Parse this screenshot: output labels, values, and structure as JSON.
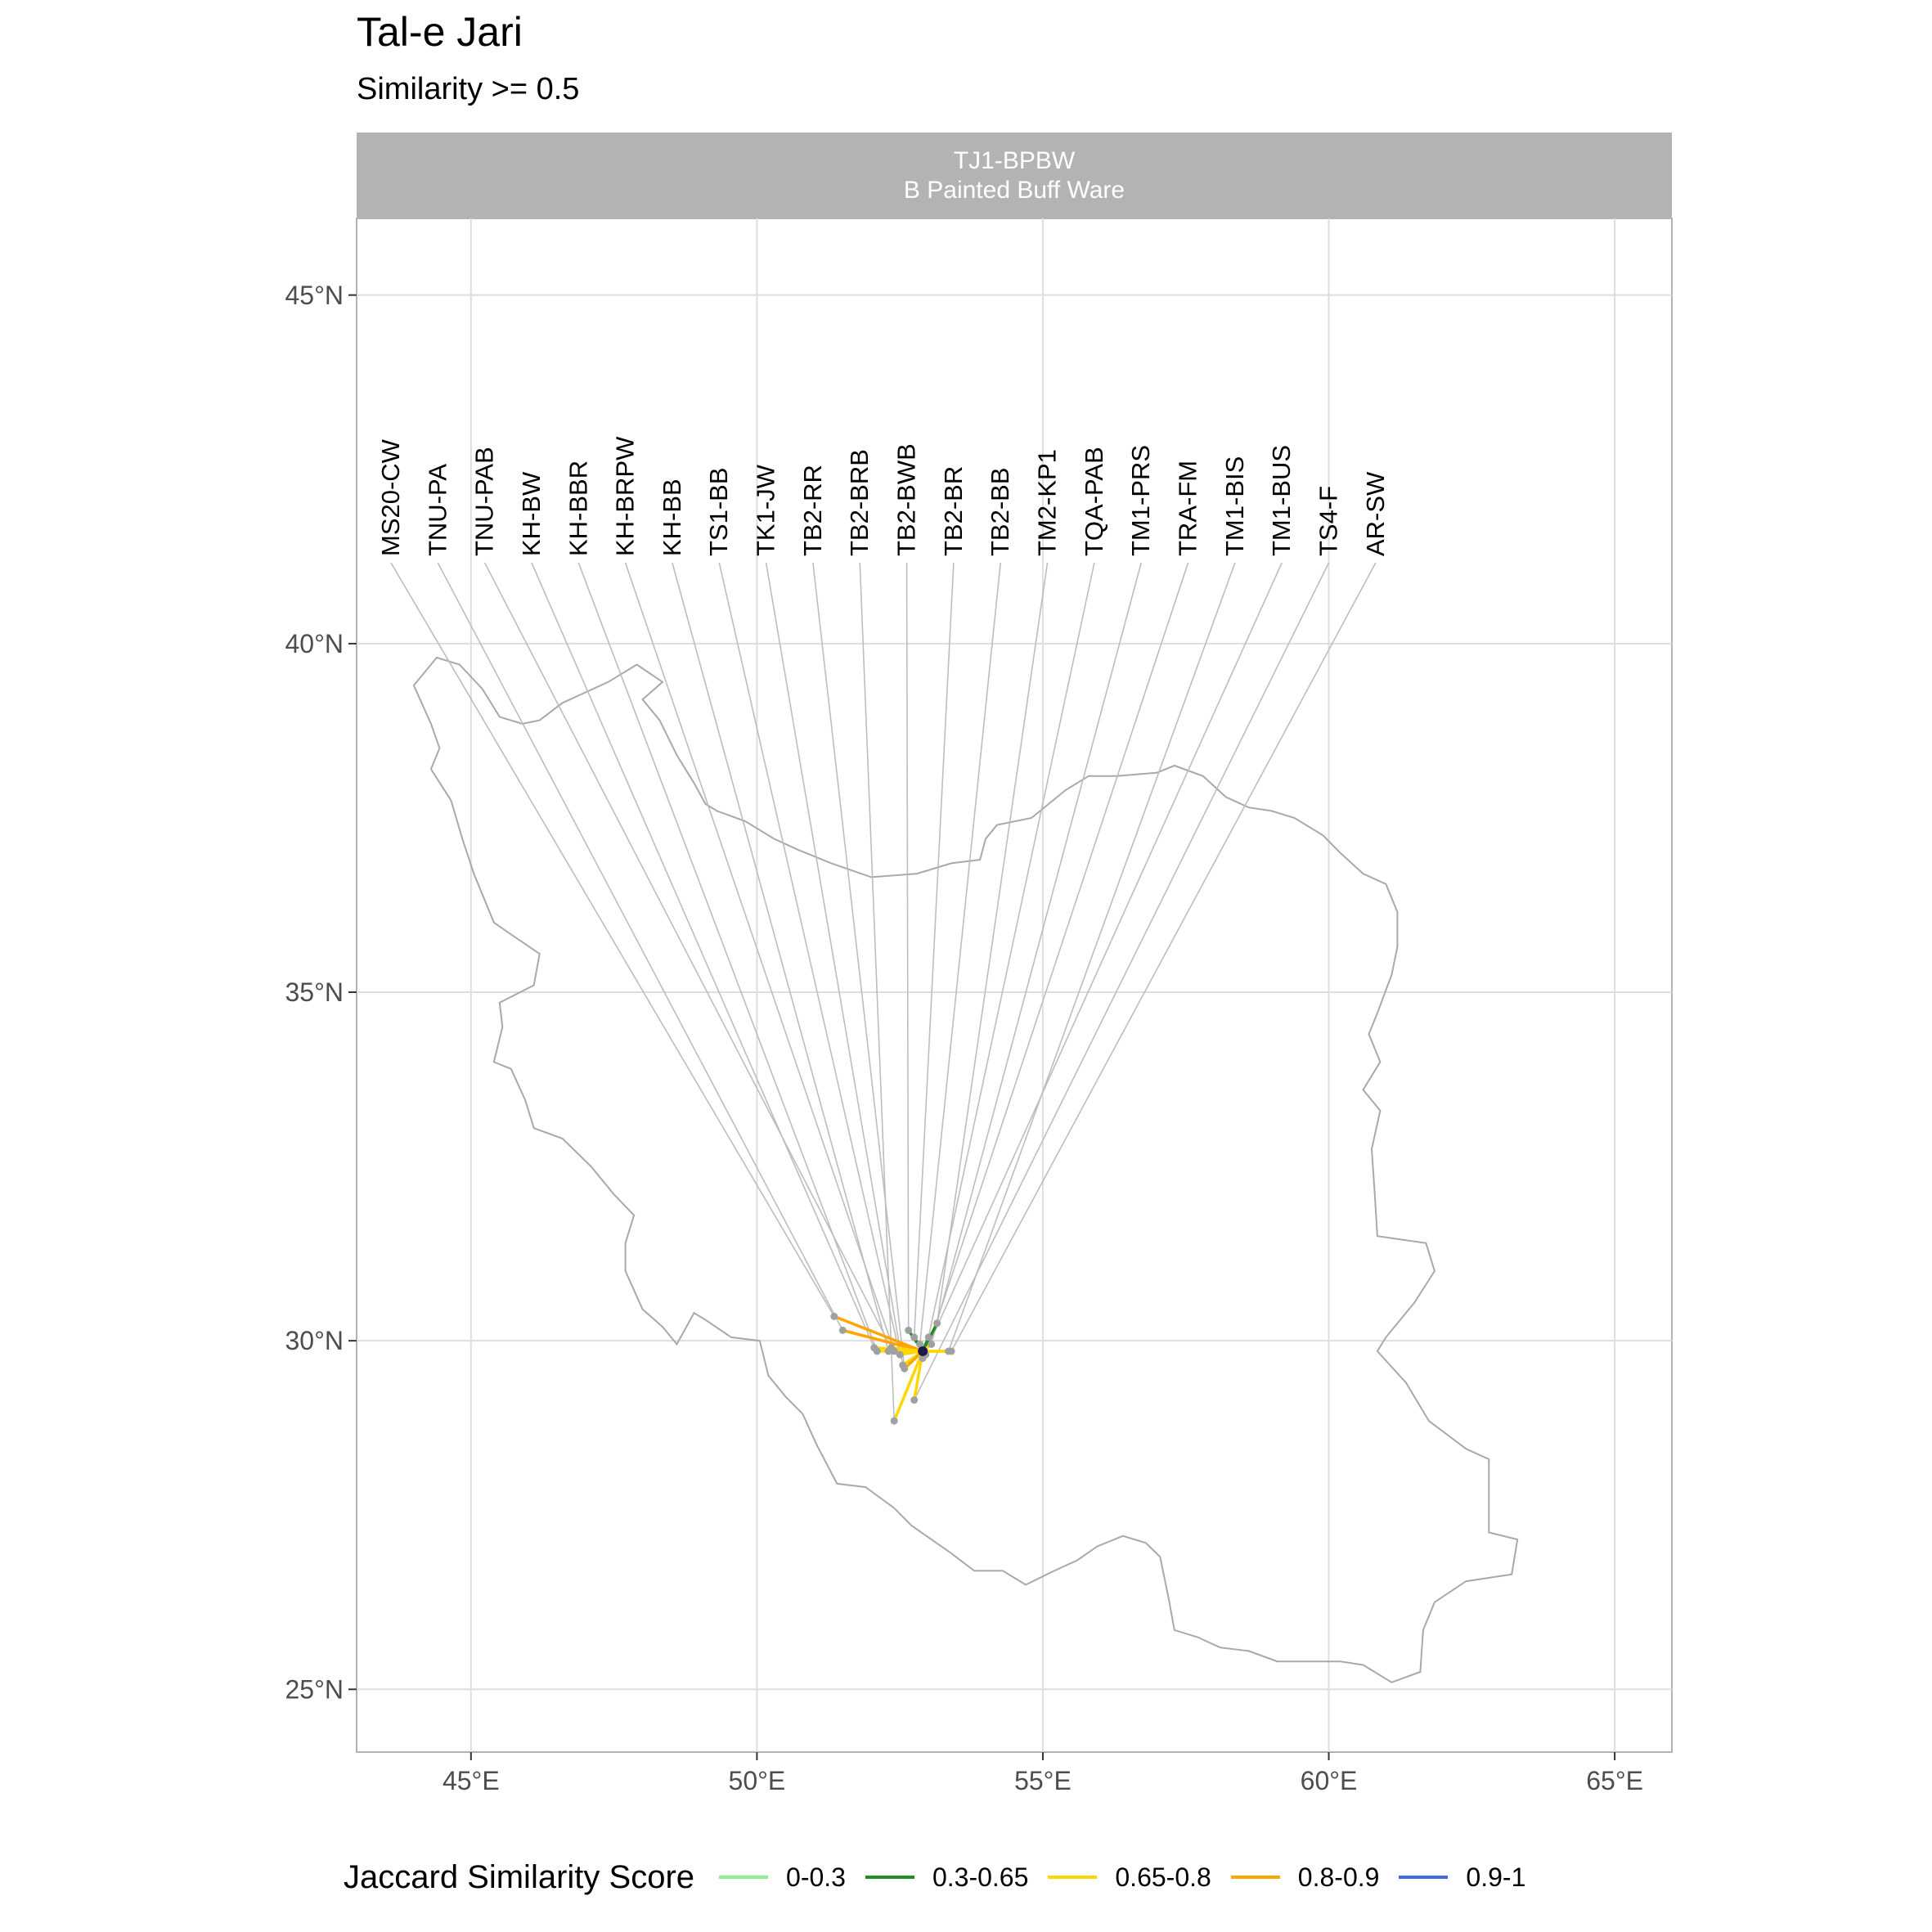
{
  "title": "Tal-e Jari",
  "subtitle": "Similarity >= 0.5",
  "facet": {
    "line1": "TJ1-BPBW",
    "line2": "B Painted Buff Ware"
  },
  "axes": {
    "x_ticks": [
      {
        "value": 45,
        "label": "45°E"
      },
      {
        "value": 50,
        "label": "50°E"
      },
      {
        "value": 55,
        "label": "55°E"
      },
      {
        "value": 60,
        "label": "60°E"
      },
      {
        "value": 65,
        "label": "65°E"
      }
    ],
    "y_ticks": [
      {
        "value": 45,
        "label": "45°N"
      },
      {
        "value": 40,
        "label": "40°N"
      },
      {
        "value": 35,
        "label": "35°N"
      },
      {
        "value": 30,
        "label": "30°N"
      },
      {
        "value": 25,
        "label": "25°N"
      }
    ],
    "xlim": [
      43.0,
      66.0
    ],
    "ylim": [
      24.1,
      46.1
    ]
  },
  "legend": {
    "title": "Jaccard Similarity Score",
    "items": [
      {
        "label": "0-0.3",
        "color": "#90ee90"
      },
      {
        "label": "0.3-0.65",
        "color": "#228b22"
      },
      {
        "label": "0.65-0.8",
        "color": "#ffd700"
      },
      {
        "label": "0.8-0.9",
        "color": "#ffa500"
      },
      {
        "label": "0.9-1",
        "color": "#4169e1"
      }
    ]
  },
  "chart_data": {
    "type": "map",
    "focal_site": {
      "name": "TJ1-BPBW",
      "lon": 52.9,
      "lat": 29.85
    },
    "grid": true,
    "sites": [
      {
        "name": "MS20-CW",
        "lon": 51.35,
        "lat": 30.35,
        "category": "0.8-0.9",
        "label_lon": 43.6
      },
      {
        "name": "TNU-PA",
        "lon": 51.5,
        "lat": 30.15,
        "category": "0.8-0.9",
        "label_lon": 44.42
      },
      {
        "name": "TNU-PAB",
        "lon": 52.35,
        "lat": 29.9,
        "category": "0.65-0.8",
        "label_lon": 45.24
      },
      {
        "name": "KH-BW",
        "lon": 52.05,
        "lat": 29.9,
        "category": "0.65-0.8",
        "label_lon": 46.06
      },
      {
        "name": "KH-BBR",
        "lon": 52.1,
        "lat": 29.85,
        "category": "0.65-0.8",
        "label_lon": 46.88
      },
      {
        "name": "KH-BRPW",
        "lon": 52.4,
        "lat": 29.85,
        "category": "0.65-0.8",
        "label_lon": 47.7
      },
      {
        "name": "KH-BB",
        "lon": 52.3,
        "lat": 29.85,
        "category": "0.65-0.8",
        "label_lon": 48.52
      },
      {
        "name": "TS1-BB",
        "lon": 52.5,
        "lat": 29.8,
        "category": "0.65-0.8",
        "label_lon": 49.34
      },
      {
        "name": "TK1-JW",
        "lon": 52.55,
        "lat": 29.65,
        "category": "0.65-0.8",
        "label_lon": 50.16
      },
      {
        "name": "TB2-RR",
        "lon": 52.58,
        "lat": 29.6,
        "category": "0.8-0.9",
        "label_lon": 50.98
      },
      {
        "name": "TB2-BRB",
        "lon": 52.4,
        "lat": 28.85,
        "category": "0.65-0.8",
        "label_lon": 51.8
      },
      {
        "name": "TB2-BWB",
        "lon": 52.65,
        "lat": 30.15,
        "category": "0.3-0.65",
        "label_lon": 52.62
      },
      {
        "name": "TB2-BR",
        "lon": 52.75,
        "lat": 30.05,
        "category": "0.3-0.65",
        "label_lon": 53.44
      },
      {
        "name": "TB2-BB",
        "lon": 52.85,
        "lat": 29.95,
        "category": "0.3-0.65",
        "label_lon": 54.26
      },
      {
        "name": "TM2-KP1",
        "lon": 53.15,
        "lat": 30.25,
        "category": "0.3-0.65",
        "label_lon": 55.08
      },
      {
        "name": "TQA-PAB",
        "lon": 53.0,
        "lat": 30.05,
        "category": "0.3-0.65",
        "label_lon": 55.9
      },
      {
        "name": "TM1-PRS",
        "lon": 53.05,
        "lat": 29.95,
        "category": "0.65-0.8",
        "label_lon": 56.72
      },
      {
        "name": "TRA-FM",
        "lon": 52.95,
        "lat": 29.8,
        "category": "0.65-0.8",
        "label_lon": 57.54
      },
      {
        "name": "TM1-BIS",
        "lon": 53.35,
        "lat": 29.85,
        "category": "0.65-0.8",
        "label_lon": 58.36
      },
      {
        "name": "TM1-BUS",
        "lon": 52.9,
        "lat": 29.75,
        "category": "0.65-0.8",
        "label_lon": 59.18
      },
      {
        "name": "TS4-F",
        "lon": 52.75,
        "lat": 29.15,
        "category": "0.65-0.8",
        "label_lon": 60.0
      },
      {
        "name": "AR-SW",
        "lon": 53.4,
        "lat": 29.85,
        "category": "0.65-0.8",
        "label_lon": 60.82
      }
    ],
    "outline": [
      [
        44.0,
        39.4
      ],
      [
        44.2,
        39.6
      ],
      [
        44.4,
        39.8
      ],
      [
        44.8,
        39.7
      ],
      [
        45.2,
        39.35
      ],
      [
        45.5,
        38.95
      ],
      [
        45.9,
        38.85
      ],
      [
        46.2,
        38.9
      ],
      [
        46.6,
        39.15
      ],
      [
        47.0,
        39.3
      ],
      [
        47.4,
        39.45
      ],
      [
        47.9,
        39.7
      ],
      [
        48.35,
        39.45
      ],
      [
        48.0,
        39.2
      ],
      [
        48.3,
        38.9
      ],
      [
        48.6,
        38.4
      ],
      [
        48.9,
        38.0
      ],
      [
        49.1,
        37.7
      ],
      [
        49.3,
        37.6
      ],
      [
        49.8,
        37.45
      ],
      [
        50.3,
        37.2
      ],
      [
        50.7,
        37.05
      ],
      [
        51.3,
        36.85
      ],
      [
        52.0,
        36.65
      ],
      [
        52.8,
        36.7
      ],
      [
        53.4,
        36.85
      ],
      [
        53.9,
        36.9
      ],
      [
        54.0,
        37.2
      ],
      [
        54.2,
        37.4
      ],
      [
        54.8,
        37.5
      ],
      [
        55.4,
        37.9
      ],
      [
        55.8,
        38.1
      ],
      [
        56.3,
        38.1
      ],
      [
        57.0,
        38.15
      ],
      [
        57.3,
        38.25
      ],
      [
        57.8,
        38.1
      ],
      [
        58.2,
        37.8
      ],
      [
        58.6,
        37.65
      ],
      [
        59.0,
        37.6
      ],
      [
        59.4,
        37.5
      ],
      [
        59.9,
        37.25
      ],
      [
        60.2,
        37.0
      ],
      [
        60.6,
        36.7
      ],
      [
        61.0,
        36.55
      ],
      [
        61.2,
        36.15
      ],
      [
        61.2,
        35.65
      ],
      [
        61.1,
        35.25
      ],
      [
        60.85,
        34.7
      ],
      [
        60.7,
        34.4
      ],
      [
        60.9,
        34.0
      ],
      [
        60.6,
        33.6
      ],
      [
        60.9,
        33.3
      ],
      [
        60.75,
        32.75
      ],
      [
        60.8,
        32.15
      ],
      [
        60.85,
        31.5
      ],
      [
        61.7,
        31.4
      ],
      [
        61.85,
        31.0
      ],
      [
        61.5,
        30.55
      ],
      [
        61.0,
        30.05
      ],
      [
        60.85,
        29.85
      ],
      [
        61.35,
        29.4
      ],
      [
        61.75,
        28.85
      ],
      [
        62.4,
        28.45
      ],
      [
        62.8,
        28.3
      ],
      [
        62.8,
        27.65
      ],
      [
        62.8,
        27.25
      ],
      [
        63.3,
        27.15
      ],
      [
        63.2,
        26.65
      ],
      [
        62.4,
        26.55
      ],
      [
        61.85,
        26.25
      ],
      [
        61.65,
        25.85
      ],
      [
        61.6,
        25.25
      ],
      [
        61.1,
        25.1
      ],
      [
        60.6,
        25.35
      ],
      [
        60.2,
        25.4
      ],
      [
        59.6,
        25.4
      ],
      [
        59.1,
        25.4
      ],
      [
        58.6,
        25.55
      ],
      [
        58.1,
        25.6
      ],
      [
        57.7,
        25.75
      ],
      [
        57.3,
        25.85
      ],
      [
        57.2,
        26.3
      ],
      [
        57.05,
        26.9
      ],
      [
        56.8,
        27.1
      ],
      [
        56.4,
        27.2
      ],
      [
        55.95,
        27.05
      ],
      [
        55.6,
        26.85
      ],
      [
        55.2,
        26.7
      ],
      [
        54.7,
        26.5
      ],
      [
        54.3,
        26.7
      ],
      [
        53.8,
        26.7
      ],
      [
        53.4,
        26.95
      ],
      [
        52.7,
        27.35
      ],
      [
        52.4,
        27.6
      ],
      [
        51.9,
        27.9
      ],
      [
        51.4,
        27.95
      ],
      [
        51.05,
        28.5
      ],
      [
        50.8,
        28.95
      ],
      [
        50.5,
        29.2
      ],
      [
        50.2,
        29.5
      ],
      [
        50.05,
        30.0
      ],
      [
        49.55,
        30.05
      ],
      [
        49.1,
        30.3
      ],
      [
        48.9,
        30.4
      ],
      [
        48.6,
        29.95
      ],
      [
        48.35,
        30.2
      ],
      [
        48.0,
        30.45
      ],
      [
        47.7,
        31.0
      ],
      [
        47.7,
        31.4
      ],
      [
        47.85,
        31.8
      ],
      [
        47.5,
        32.1
      ],
      [
        47.1,
        32.5
      ],
      [
        46.6,
        32.9
      ],
      [
        46.1,
        33.05
      ],
      [
        45.95,
        33.45
      ],
      [
        45.7,
        33.9
      ],
      [
        45.4,
        34.0
      ],
      [
        45.55,
        34.5
      ],
      [
        45.5,
        34.85
      ],
      [
        46.1,
        35.1
      ],
      [
        46.2,
        35.55
      ],
      [
        45.75,
        35.8
      ],
      [
        45.4,
        36.0
      ],
      [
        45.05,
        36.7
      ],
      [
        44.85,
        37.2
      ],
      [
        44.65,
        37.75
      ],
      [
        44.3,
        38.2
      ],
      [
        44.45,
        38.5
      ],
      [
        44.3,
        38.85
      ],
      [
        44.0,
        39.4
      ]
    ]
  }
}
